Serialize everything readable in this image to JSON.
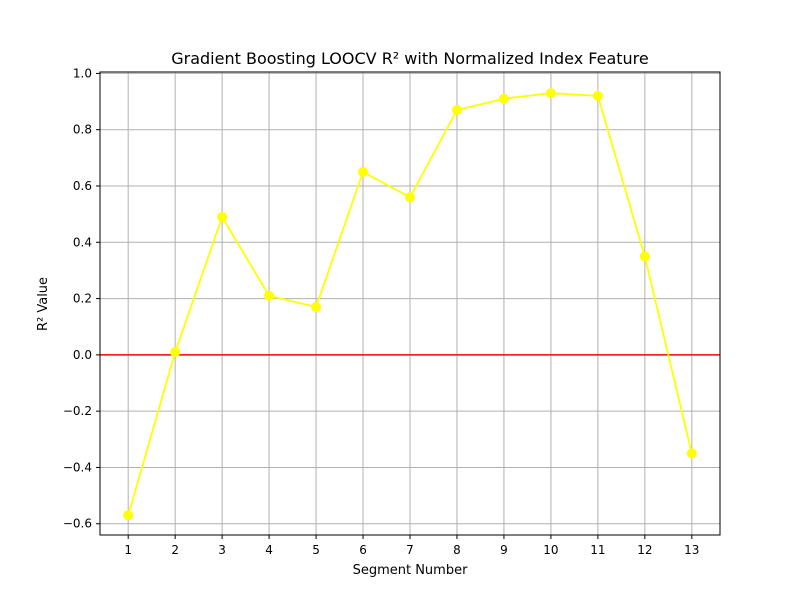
{
  "chart_data": {
    "type": "line",
    "title": "Gradient Boosting LOOCV R² with Normalized Index Feature",
    "xlabel": "Segment Number",
    "ylabel": "R² Value",
    "x": [
      1,
      2,
      3,
      4,
      5,
      6,
      7,
      8,
      9,
      10,
      11,
      12,
      13
    ],
    "series": [
      {
        "values": [
          -0.57,
          0.01,
          0.49,
          0.21,
          0.17,
          0.65,
          0.56,
          0.87,
          0.91,
          0.93,
          0.92,
          0.35,
          -0.35
        ],
        "color": "#ffff00"
      }
    ],
    "xlim": [
      0.4,
      13.6
    ],
    "ylim": [
      -0.64,
      1.005
    ],
    "xticks": [
      1,
      2,
      3,
      4,
      5,
      6,
      7,
      8,
      9,
      10,
      11,
      12,
      13
    ],
    "xtick_labels": [
      "1",
      "2",
      "3",
      "4",
      "5",
      "6",
      "7",
      "8",
      "9",
      "10",
      "11",
      "12",
      "13"
    ],
    "yticks": [
      -0.6,
      -0.4,
      -0.2,
      0.0,
      0.2,
      0.4,
      0.6,
      0.8,
      1.0
    ],
    "ytick_labels": [
      "−0.6",
      "−0.4",
      "−0.2",
      "0.0",
      "0.2",
      "0.4",
      "0.6",
      "0.8",
      "1.0"
    ],
    "reference_line": {
      "y": 0,
      "color": "#ff0000"
    },
    "grid": true,
    "grid_color": "#b0b0b0",
    "legend": "none"
  }
}
